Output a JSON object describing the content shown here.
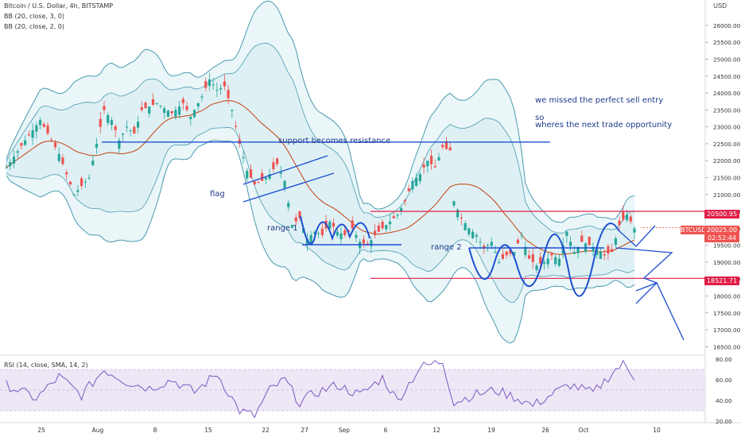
{
  "legend": {
    "symbol": "Bitcoin / U.S. Dollar, 4h, BITSTAMP",
    "indicator_1": "BB (20, close, 3, 0)",
    "indicator_2": "BB (20, close, 2, 0)",
    "rsi": "RSI (14, close, SMA, 14, 2)"
  },
  "axis": {
    "currency": "USD",
    "price_ticks": [
      "26000.00",
      "25500.00",
      "25000.00",
      "24500.00",
      "24000.00",
      "23500.00",
      "23000.00",
      "22500.00",
      "22000.00",
      "21500.00",
      "21000.00",
      "20500.00",
      "20000.00",
      "19500.00",
      "19000.00",
      "18500.00",
      "18000.00",
      "17500.00",
      "17000.00",
      "16500.00"
    ],
    "rsi_ticks": [
      "80.00",
      "60.00",
      "40.00",
      "20.00"
    ],
    "time_ticks": [
      "25",
      "Aug",
      "8",
      "15",
      "22",
      "27",
      "Sep",
      "6",
      "12",
      "19",
      "26",
      "Oct",
      "10"
    ]
  },
  "tags": {
    "resistance": "20500.95",
    "symbol_tag": "BTCUSD",
    "last_price": "20025.00",
    "countdown": "02:52:44",
    "support": "18521.71"
  },
  "annotations": {
    "note_line1": "we missed the perfect sell entry",
    "note_line2": "so",
    "note_line3": "wheres the next trade opportunity",
    "support_resistance": "support becomes resistance",
    "flag": "flag",
    "range1": "range 1",
    "range2": "range 2"
  },
  "colors": {
    "bull": "#26a69a",
    "bear": "#ef5350",
    "bb_band": "#4a9ab0",
    "bb_fill": "#d9eef3",
    "basis": "#c2410c",
    "drawing": "#1e4fd1",
    "resistance": "#e11d48",
    "rsi_line": "#7e57c2",
    "rsi_band": "#ede7f6"
  },
  "chart_data": {
    "type": "candlestick",
    "title": "Bitcoin / U.S. Dollar, 4h, BITSTAMP",
    "x_range": [
      "Jul 21",
      "Oct 14"
    ],
    "y_range": [
      16250,
      26750
    ],
    "close_path": [
      [
        0,
        21800
      ],
      [
        5,
        22600
      ],
      [
        9,
        23200
      ],
      [
        14,
        22200
      ],
      [
        18,
        21000
      ],
      [
        22,
        21500
      ],
      [
        24,
        22500
      ],
      [
        26,
        23500
      ],
      [
        28,
        23200
      ],
      [
        30,
        22600
      ],
      [
        32,
        23000
      ],
      [
        34,
        22800
      ],
      [
        36,
        23500
      ],
      [
        40,
        23700
      ],
      [
        44,
        23400
      ],
      [
        47,
        23700
      ],
      [
        49,
        23300
      ],
      [
        52,
        23900
      ],
      [
        54,
        24400
      ],
      [
        56,
        24100
      ],
      [
        58,
        24200
      ],
      [
        60,
        23500
      ],
      [
        62,
        22500
      ],
      [
        64,
        21700
      ],
      [
        66,
        21300
      ],
      [
        68,
        21400
      ],
      [
        70,
        21600
      ],
      [
        72,
        21900
      ],
      [
        74,
        21400
      ],
      [
        76,
        20100
      ],
      [
        78,
        20300
      ],
      [
        80,
        19700
      ],
      [
        82,
        19900
      ],
      [
        84,
        19800
      ],
      [
        86,
        20200
      ],
      [
        88,
        19900
      ],
      [
        90,
        19800
      ],
      [
        92,
        20000
      ],
      [
        94,
        19600
      ],
      [
        96,
        19500
      ],
      [
        98,
        19800
      ],
      [
        100,
        20000
      ],
      [
        102,
        20200
      ],
      [
        104,
        20400
      ],
      [
        106,
        20800
      ],
      [
        108,
        21400
      ],
      [
        110,
        21600
      ],
      [
        112,
        22000
      ],
      [
        114,
        21800
      ],
      [
        116,
        22400
      ],
      [
        118,
        22300
      ],
      [
        119,
        20800
      ],
      [
        121,
        20300
      ],
      [
        123,
        20000
      ],
      [
        125,
        19800
      ],
      [
        127,
        19400
      ],
      [
        129,
        19600
      ],
      [
        131,
        19000
      ],
      [
        133,
        19200
      ],
      [
        135,
        19300
      ],
      [
        137,
        19800
      ],
      [
        139,
        19100
      ],
      [
        141,
        18900
      ],
      [
        143,
        19000
      ],
      [
        145,
        19200
      ],
      [
        147,
        19100
      ],
      [
        149,
        19900
      ],
      [
        151,
        19300
      ],
      [
        153,
        19600
      ],
      [
        155,
        19500
      ],
      [
        157,
        19400
      ],
      [
        159,
        19200
      ],
      [
        161,
        19300
      ],
      [
        163,
        20100
      ],
      [
        165,
        20400
      ],
      [
        167,
        20000
      ]
    ],
    "bar_count": 168,
    "series": [
      {
        "name": "BB (20, close, 3, 0)",
        "values": []
      },
      {
        "name": "BB (20, close, 2, 0)",
        "values": []
      }
    ],
    "levels": {
      "resistance": 20500.95,
      "support_resistance": 22550,
      "support": 18521.71
    },
    "last_price": 20025.0,
    "rsi": {
      "title": "RSI (14, close, SMA, 14, 2)",
      "y_range": [
        20,
        80
      ],
      "band": [
        30,
        70
      ],
      "path": [
        [
          0,
          55
        ],
        [
          8,
          42
        ],
        [
          14,
          63
        ],
        [
          20,
          45
        ],
        [
          26,
          70
        ],
        [
          32,
          58
        ],
        [
          38,
          52
        ],
        [
          44,
          60
        ],
        [
          50,
          48
        ],
        [
          56,
          66
        ],
        [
          62,
          30
        ],
        [
          66,
          25
        ],
        [
          70,
          50
        ],
        [
          74,
          60
        ],
        [
          78,
          38
        ],
        [
          82,
          47
        ],
        [
          88,
          55
        ],
        [
          94,
          45
        ],
        [
          100,
          62
        ],
        [
          104,
          40
        ],
        [
          110,
          72
        ],
        [
          116,
          78
        ],
        [
          119,
          38
        ],
        [
          124,
          45
        ],
        [
          130,
          50
        ],
        [
          136,
          42
        ],
        [
          140,
          35
        ],
        [
          146,
          48
        ],
        [
          150,
          55
        ],
        [
          156,
          47
        ],
        [
          162,
          70
        ],
        [
          164,
          75
        ],
        [
          167,
          63
        ]
      ]
    }
  }
}
